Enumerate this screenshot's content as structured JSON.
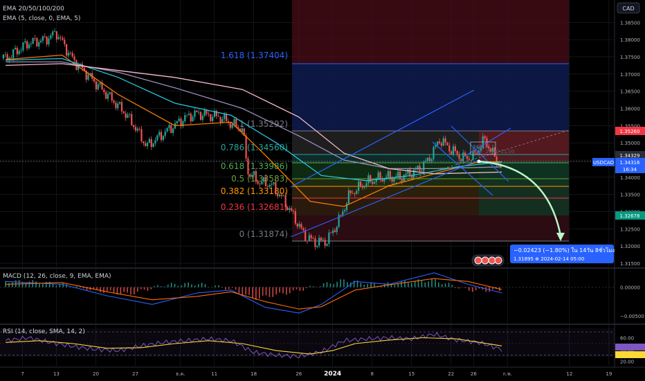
{
  "colors": {
    "background": "#000000",
    "grid": "#1f2229",
    "separator": "#2a2e39",
    "axis_text": "#b2b5be",
    "candle_up": "#26a69a",
    "candle_down": "#ef5350",
    "ema20": "#f57c00",
    "ema50": "#26c6da",
    "ema100": "#9c8fbd",
    "ema200": "#f8bbd0",
    "ema5": "#ffffff",
    "channel": "#2962ff",
    "arrow": "#b9f6ca",
    "forecast_box": "#2962ff",
    "macd": "#2962ff",
    "signal": "#ff6d00",
    "rsi": "#7e57c2",
    "rsi_ma": "#fdd835"
  },
  "legend": {
    "line1": "EMA 20/50/100/200",
    "line2": "EMA (5, close, 0, EMA, 5)"
  },
  "currency_badge": "CAD",
  "symbol_tag": {
    "symbol": "USDCAD",
    "price": "1.34316",
    "countdown": "16:34"
  },
  "price_tags": {
    "upper_red": "1.35260",
    "upper": "1.34329",
    "lower_green": "1.32678"
  },
  "fib_labels": [
    {
      "text": "1.618 (1.37404)",
      "color": "#2962ff"
    },
    {
      "text": "1 (1.35292)",
      "color": "#787b86"
    },
    {
      "text": "0.786 (1.34560)",
      "color": "#26a69a"
    },
    {
      "text": "0.618 (1.33986)",
      "color": "#4caf50"
    },
    {
      "text": "0.5 (1.33583)",
      "color": "#689f38"
    },
    {
      "text": "0.382 (1.33180)",
      "color": "#ff9800"
    },
    {
      "text": "0.236 (1.32681)",
      "color": "#f23645"
    },
    {
      "text": "0 (1.31874)",
      "color": "#787b86"
    }
  ],
  "measure": {
    "line1": "−0.02423 (−1.80%) ใน 14วัน 8ชั่วโมง",
    "line2": "1.31895 ⊕ 2024-02-14  05:00"
  },
  "small_box": {
    "line1": "34318",
    "line2": "6.5 - 21:50 11.00"
  },
  "macd_legend": "MACD (12, 26, close, 9, EMA, EMA)",
  "rsi_legend": "RSI (14, close, SMA, 14, 2)",
  "chart_data": [
    {
      "type": "candlestick",
      "title": "USDCAD",
      "y_scale": "price",
      "ylim": [
        1.314,
        1.3915
      ],
      "y_ticks": [
        "1.38500",
        "1.38000",
        "1.37500",
        "1.37000",
        "1.36500",
        "1.36000",
        "1.35500",
        "1.35000",
        "1.34500",
        "1.34000",
        "1.33500",
        "1.33000",
        "1.32500",
        "1.32000",
        "1.31500"
      ],
      "x_ticks": [
        "7",
        "13",
        "20",
        "27",
        "ธ.ค.",
        "11",
        "18",
        "26",
        "2024",
        "8",
        "15",
        "22",
        "26",
        "ก.พ.",
        "12",
        "19"
      ],
      "x_tick_days": [
        7,
        13,
        20,
        27,
        35,
        41,
        48,
        56,
        62,
        69,
        76,
        83,
        87,
        93,
        104,
        111
      ],
      "series": [
        {
          "name": "USDCAD",
          "points": [
            [
              4,
              1.3745
            ],
            [
              8,
              1.379
            ],
            [
              11,
              1.38
            ],
            [
              13,
              1.382
            ],
            [
              16,
              1.374
            ],
            [
              19,
              1.369
            ],
            [
              22,
              1.364
            ],
            [
              25,
              1.359
            ],
            [
              27,
              1.3545
            ],
            [
              29,
              1.349
            ],
            [
              31,
              1.3515
            ],
            [
              33,
              1.354
            ],
            [
              36,
              1.3575
            ],
            [
              38,
              1.3585
            ],
            [
              40,
              1.358
            ],
            [
              42,
              1.3575
            ],
            [
              44,
              1.3555
            ],
            [
              46,
              1.354
            ],
            [
              47,
              1.3415
            ],
            [
              49,
              1.3385
            ],
            [
              51,
              1.338
            ],
            [
              53,
              1.334
            ],
            [
              55,
              1.329
            ],
            [
              57,
              1.323
            ],
            [
              59,
              1.321
            ],
            [
              61,
              1.3215
            ],
            [
              63,
              1.327
            ],
            [
              65,
              1.335
            ],
            [
              68,
              1.3385
            ],
            [
              71,
              1.34
            ],
            [
              74,
              1.34
            ],
            [
              77,
              1.342
            ],
            [
              79,
              1.345
            ],
            [
              81,
              1.351
            ],
            [
              83,
              1.348
            ],
            [
              85,
              1.3455
            ],
            [
              87,
              1.346
            ],
            [
              89,
              1.351
            ],
            [
              91,
              1.345
            ],
            [
              92,
              1.3431
            ]
          ]
        },
        {
          "name": "EMA 20",
          "points": [
            [
              4,
              1.3742
            ],
            [
              14,
              1.3755
            ],
            [
              24,
              1.364
            ],
            [
              34,
              1.355
            ],
            [
              44,
              1.356
            ],
            [
              50,
              1.3465
            ],
            [
              58,
              1.333
            ],
            [
              64,
              1.3315
            ],
            [
              72,
              1.3375
            ],
            [
              80,
              1.341
            ],
            [
              88,
              1.3445
            ],
            [
              92,
              1.3445
            ]
          ]
        },
        {
          "name": "EMA 50",
          "points": [
            [
              4,
              1.374
            ],
            [
              14,
              1.3745
            ],
            [
              24,
              1.369
            ],
            [
              34,
              1.3615
            ],
            [
              44,
              1.358
            ],
            [
              52,
              1.35
            ],
            [
              60,
              1.3405
            ],
            [
              68,
              1.339
            ],
            [
              76,
              1.3405
            ],
            [
              84,
              1.343
            ],
            [
              92,
              1.3445
            ]
          ]
        },
        {
          "name": "EMA 100",
          "points": [
            [
              4,
              1.3735
            ],
            [
              14,
              1.3735
            ],
            [
              24,
              1.3705
            ],
            [
              34,
              1.366
            ],
            [
              46,
              1.36
            ],
            [
              56,
              1.352
            ],
            [
              64,
              1.345
            ],
            [
              72,
              1.3425
            ],
            [
              80,
              1.3425
            ],
            [
              92,
              1.343
            ]
          ]
        },
        {
          "name": "EMA 200",
          "points": [
            [
              4,
              1.3725
            ],
            [
              14,
              1.373
            ],
            [
              24,
              1.371
            ],
            [
              34,
              1.369
            ],
            [
              46,
              1.3655
            ],
            [
              56,
              1.3575
            ],
            [
              64,
              1.347
            ],
            [
              72,
              1.3425
            ],
            [
              80,
              1.341
            ],
            [
              92,
              1.3415
            ]
          ]
        }
      ]
    },
    {
      "type": "bar",
      "title": "MACD (12, 26, close, 9, EMA, EMA)",
      "ylim": [
        -0.0062,
        0.0032
      ],
      "y_ticks": [
        "0.00000",
        "−0.00500"
      ],
      "series": [
        {
          "name": "Histogram",
          "points": [
            [
              8,
              0.001
            ],
            [
              14,
              0.0005
            ],
            [
              20,
              -0.0006
            ],
            [
              26,
              -0.0012
            ],
            [
              32,
              0.0004
            ],
            [
              38,
              0.0006
            ],
            [
              44,
              -0.0003
            ],
            [
              48,
              -0.002
            ],
            [
              54,
              -0.001
            ],
            [
              60,
              0.0004
            ],
            [
              64,
              0.0012
            ],
            [
              70,
              0.0004
            ],
            [
              76,
              0.001
            ],
            [
              80,
              0.0012
            ],
            [
              86,
              -0.0005
            ],
            [
              92,
              -0.0006
            ]
          ]
        },
        {
          "name": "MACD",
          "points": [
            [
              4,
              0.001
            ],
            [
              14,
              0.0005
            ],
            [
              22,
              -0.0015
            ],
            [
              30,
              -0.003
            ],
            [
              38,
              -0.001
            ],
            [
              44,
              -0.0005
            ],
            [
              50,
              -0.0035
            ],
            [
              56,
              -0.0045
            ],
            [
              60,
              -0.003
            ],
            [
              66,
              0.001
            ],
            [
              72,
              0.0005
            ],
            [
              80,
              0.0025
            ],
            [
              86,
              0.0005
            ],
            [
              92,
              -0.001
            ]
          ]
        },
        {
          "name": "Signal",
          "points": [
            [
              4,
              0.0005
            ],
            [
              14,
              0.0008
            ],
            [
              22,
              -0.0008
            ],
            [
              30,
              -0.0022
            ],
            [
              38,
              -0.0016
            ],
            [
              44,
              -0.0008
            ],
            [
              50,
              -0.0025
            ],
            [
              56,
              -0.0038
            ],
            [
              60,
              -0.0034
            ],
            [
              66,
              -0.0005
            ],
            [
              72,
              0.0004
            ],
            [
              80,
              0.0015
            ],
            [
              86,
              0.001
            ],
            [
              92,
              -0.0004
            ]
          ]
        }
      ]
    },
    {
      "type": "line",
      "title": "RSI (14, close, SMA, 14, 2)",
      "ylim": [
        12,
        82
      ],
      "y_ticks": [
        "60.00",
        "40.00",
        "20.00"
      ],
      "bands": [
        70,
        30
      ],
      "series": [
        {
          "name": "RSI",
          "points": [
            [
              4,
              55
            ],
            [
              8,
              60
            ],
            [
              12,
              52
            ],
            [
              16,
              45
            ],
            [
              20,
              40
            ],
            [
              24,
              38
            ],
            [
              28,
              46
            ],
            [
              32,
              52
            ],
            [
              36,
              55
            ],
            [
              40,
              58
            ],
            [
              44,
              55
            ],
            [
              48,
              35
            ],
            [
              52,
              30
            ],
            [
              56,
              28
            ],
            [
              60,
              36
            ],
            [
              64,
              55
            ],
            [
              68,
              58
            ],
            [
              72,
              60
            ],
            [
              76,
              58
            ],
            [
              80,
              66
            ],
            [
              84,
              56
            ],
            [
              88,
              52
            ],
            [
              92,
              40
            ]
          ]
        },
        {
          "name": "RSI-based MA",
          "points": [
            [
              4,
              52
            ],
            [
              10,
              55
            ],
            [
              16,
              50
            ],
            [
              22,
              42
            ],
            [
              28,
              43
            ],
            [
              34,
              50
            ],
            [
              40,
              55
            ],
            [
              46,
              50
            ],
            [
              52,
              38
            ],
            [
              58,
              32
            ],
            [
              62,
              38
            ],
            [
              66,
              50
            ],
            [
              72,
              56
            ],
            [
              78,
              60
            ],
            [
              84,
              58
            ],
            [
              92,
              46
            ]
          ]
        }
      ]
    }
  ]
}
